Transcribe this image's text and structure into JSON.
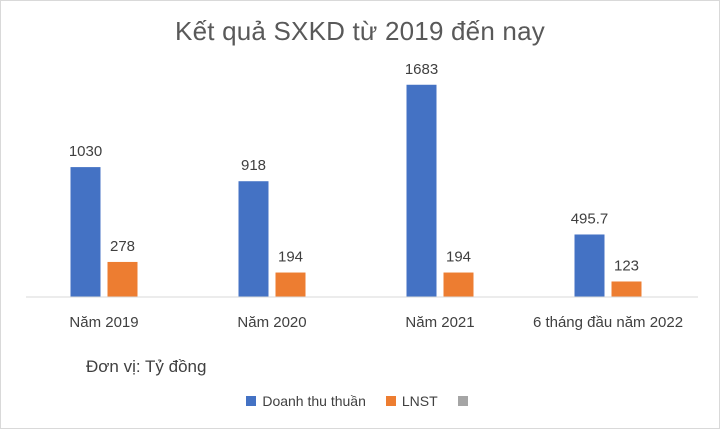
{
  "chart_data": {
    "type": "bar",
    "title": "Kết quả SXKD từ 2019 đến nay",
    "categories": [
      "Năm 2019",
      "Năm 2020",
      "Năm 2021",
      "6 tháng đầu năm 2022"
    ],
    "series": [
      {
        "name": "Doanh thu thuần",
        "values": [
          1030,
          918,
          1683,
          495.7
        ],
        "labels": [
          "1030",
          "918",
          "1683",
          "495.7"
        ],
        "color": "#4472c4"
      },
      {
        "name": "LNST",
        "values": [
          278,
          194,
          194,
          123
        ],
        "labels": [
          "278",
          "194",
          "194",
          "123"
        ],
        "color": "#ed7d31"
      },
      {
        "name": "",
        "values": [
          0,
          0,
          0,
          0
        ],
        "labels": [],
        "color": "#a5a5a5"
      }
    ],
    "ylim": [
      0,
      1800
    ],
    "grid": false,
    "legend_position": "bottom",
    "note": "Đơn vị: Tỷ đồng"
  }
}
